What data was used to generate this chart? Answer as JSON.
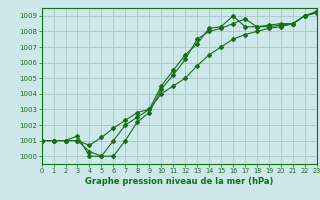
{
  "background_color": "#cce8e8",
  "grid_color": "#aacccc",
  "line_color": "#1a6b1a",
  "xlabel": "Graphe pression niveau de la mer (hPa)",
  "xlim": [
    0,
    23
  ],
  "ylim": [
    999.5,
    1009.5
  ],
  "yticks": [
    1000,
    1001,
    1002,
    1003,
    1004,
    1005,
    1006,
    1007,
    1008,
    1009
  ],
  "xticks": [
    0,
    1,
    2,
    3,
    4,
    5,
    6,
    7,
    8,
    9,
    10,
    11,
    12,
    13,
    14,
    15,
    16,
    17,
    18,
    19,
    20,
    21,
    22,
    23
  ],
  "series1_x": [
    0,
    1,
    2,
    3,
    4,
    5,
    6,
    7,
    8,
    9,
    10,
    11,
    12,
    13,
    14,
    15,
    16,
    17,
    18,
    19,
    20,
    21,
    22,
    23
  ],
  "series1_y": [
    1001.0,
    1001.0,
    1001.0,
    1001.0,
    1000.3,
    1000.0,
    1000.0,
    1001.0,
    1002.2,
    1002.8,
    1004.3,
    1005.2,
    1006.2,
    1007.5,
    1008.0,
    1008.2,
    1008.5,
    1008.8,
    1008.3,
    1008.3,
    1008.4,
    1008.5,
    1009.0,
    1009.2
  ],
  "series2_x": [
    0,
    1,
    2,
    3,
    4,
    5,
    6,
    7,
    8,
    9,
    10,
    11,
    12,
    13,
    14,
    15,
    16,
    17,
    18,
    19,
    20,
    21,
    22,
    23
  ],
  "series2_y": [
    1001.0,
    1001.0,
    1001.0,
    1001.0,
    1000.7,
    1001.2,
    1001.8,
    1002.3,
    1002.8,
    1003.0,
    1004.0,
    1004.5,
    1005.0,
    1005.8,
    1006.5,
    1007.0,
    1007.5,
    1007.8,
    1008.0,
    1008.2,
    1008.3,
    1008.5,
    1009.0,
    1009.2
  ],
  "series3_x": [
    0,
    1,
    2,
    3,
    4,
    5,
    6,
    7,
    8,
    9,
    10,
    11,
    12,
    13,
    14,
    15,
    16,
    17,
    18,
    19,
    20,
    21,
    22,
    23
  ],
  "series3_y": [
    1001.0,
    1001.0,
    1001.0,
    1001.3,
    1000.0,
    1000.0,
    1001.0,
    1002.0,
    1002.5,
    1003.0,
    1004.5,
    1005.5,
    1006.5,
    1007.2,
    1008.2,
    1008.3,
    1009.0,
    1008.3,
    1008.3,
    1008.4,
    1008.5,
    1008.5,
    1009.0,
    1009.3
  ],
  "tick_fontsize": 5.0,
  "xlabel_fontsize": 6.0
}
